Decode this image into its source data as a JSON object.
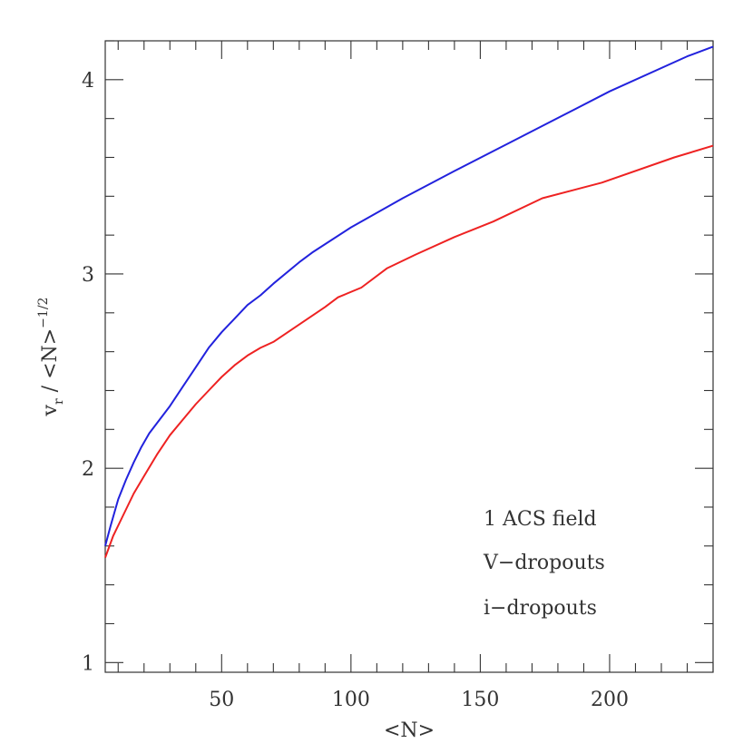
{
  "chart_data": {
    "type": "line",
    "xlabel": "<N>",
    "ylabel": {
      "main": "v",
      "sub": "r",
      "mid": " / <N>",
      "sup": "−1/2"
    },
    "xlim": [
      5,
      240
    ],
    "ylim": [
      0.95,
      4.2
    ],
    "x_major_ticks": [
      50,
      100,
      150,
      200
    ],
    "x_tick_labels": [
      "50",
      "100",
      "150",
      "200"
    ],
    "y_major_ticks": [
      1,
      2,
      3,
      4
    ],
    "y_tick_labels": [
      "1",
      "2",
      "3",
      "4"
    ],
    "annotations": {
      "field": "1 ACS field"
    },
    "legend_position": "bottom-right",
    "grid": false,
    "series": [
      {
        "name": "V−dropouts",
        "color": "#ee2222",
        "x": [
          5,
          8,
          12,
          16,
          20,
          25,
          30,
          35,
          40,
          45,
          50,
          55,
          60,
          65,
          70,
          80,
          90,
          95,
          104,
          114,
          125,
          140,
          155,
          174,
          197,
          225,
          240
        ],
        "y": [
          1.54,
          1.65,
          1.76,
          1.87,
          1.96,
          2.07,
          2.17,
          2.25,
          2.33,
          2.4,
          2.47,
          2.53,
          2.58,
          2.62,
          2.65,
          2.74,
          2.83,
          2.88,
          2.93,
          3.03,
          3.1,
          3.19,
          3.27,
          3.39,
          3.47,
          3.6,
          3.66
        ]
      },
      {
        "name": "i−dropouts",
        "color": "#2222dd",
        "x": [
          5,
          7,
          10,
          13,
          16,
          19,
          22,
          26,
          30,
          35,
          40,
          45,
          50,
          55,
          60,
          65,
          70,
          80,
          85,
          100,
          120,
          140,
          162,
          200,
          230,
          240
        ],
        "y": [
          1.6,
          1.7,
          1.84,
          1.94,
          2.03,
          2.11,
          2.18,
          2.25,
          2.32,
          2.42,
          2.52,
          2.62,
          2.7,
          2.77,
          2.84,
          2.89,
          2.95,
          3.06,
          3.11,
          3.24,
          3.39,
          3.53,
          3.68,
          3.94,
          4.12,
          4.17
        ]
      }
    ]
  }
}
